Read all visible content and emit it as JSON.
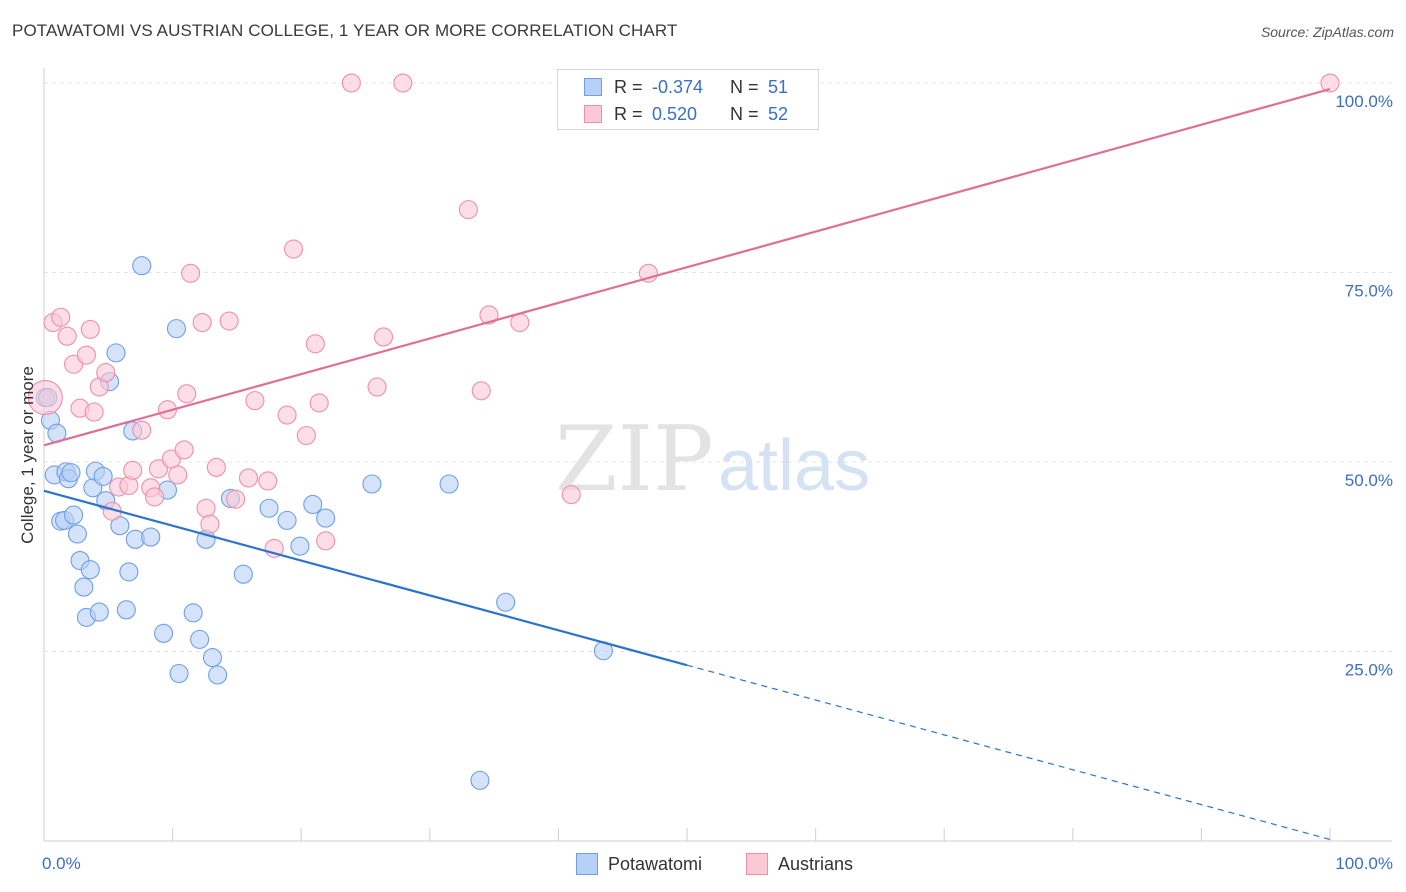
{
  "title": "POTAWATOMI VS AUSTRIAN COLLEGE, 1 YEAR OR MORE CORRELATION CHART",
  "source": "Source: ZipAtlas.com",
  "watermark": {
    "zip": "ZIP",
    "atlas": "atlas"
  },
  "legend": {
    "rows": [
      {
        "r_label": "R =",
        "r_value": "-0.374",
        "n_label": "N =",
        "n_value": "51",
        "fill": "#b7d0f5",
        "stroke": "#6f9fe6"
      },
      {
        "r_label": "R =",
        "r_value": "0.520",
        "n_label": "N =",
        "n_value": "52",
        "fill": "#fbc8d6",
        "stroke": "#ee8fab"
      }
    ]
  },
  "chart_data": {
    "type": "scatter",
    "xlabel": "",
    "ylabel": "College, 1 year or more",
    "xlim": [
      0,
      100
    ],
    "ylim": [
      0,
      100
    ],
    "x_tick_labels": [
      "0.0%",
      "100.0%"
    ],
    "y_tick_labels": [
      "25.0%",
      "50.0%",
      "75.0%",
      "100.0%"
    ],
    "y_ticks": [
      25,
      50,
      75,
      100
    ],
    "grid": true,
    "legend_position": "bottom",
    "series": [
      {
        "name": "Potawatomi",
        "color": "#6f9fe6",
        "fill": "#b7d0f5",
        "line_color": "#2b72d3",
        "trend": {
          "x0": 0,
          "y0": 46.2,
          "x1": 50,
          "y1": 23.2,
          "dashed_to_x": 100,
          "dashed_to_y": 0.2
        },
        "points": [
          [
            0.1,
            58.5
          ],
          [
            0.5,
            55.5
          ],
          [
            0.8,
            48.3
          ],
          [
            1.0,
            53.8
          ],
          [
            1.3,
            42.2
          ],
          [
            1.6,
            42.3
          ],
          [
            1.7,
            48.7
          ],
          [
            1.9,
            47.8
          ],
          [
            2.1,
            48.6
          ],
          [
            2.3,
            43.0
          ],
          [
            2.6,
            40.5
          ],
          [
            2.8,
            37.0
          ],
          [
            3.1,
            33.5
          ],
          [
            3.3,
            29.5
          ],
          [
            3.6,
            35.8
          ],
          [
            3.8,
            46.6
          ],
          [
            4.0,
            48.8
          ],
          [
            4.3,
            30.2
          ],
          [
            4.6,
            48.1
          ],
          [
            4.8,
            44.9
          ],
          [
            5.1,
            60.6
          ],
          [
            5.6,
            64.4
          ],
          [
            5.9,
            41.6
          ],
          [
            6.4,
            30.5
          ],
          [
            6.6,
            35.5
          ],
          [
            6.9,
            54.1
          ],
          [
            7.1,
            39.8
          ],
          [
            7.6,
            75.9
          ],
          [
            8.3,
            40.1
          ],
          [
            9.3,
            27.4
          ],
          [
            9.6,
            46.3
          ],
          [
            10.3,
            67.6
          ],
          [
            10.5,
            22.1
          ],
          [
            11.6,
            30.1
          ],
          [
            12.1,
            26.6
          ],
          [
            12.6,
            39.8
          ],
          [
            13.1,
            24.2
          ],
          [
            13.5,
            21.9
          ],
          [
            14.5,
            45.2
          ],
          [
            15.5,
            35.2
          ],
          [
            17.5,
            43.9
          ],
          [
            18.9,
            42.3
          ],
          [
            19.9,
            38.9
          ],
          [
            20.9,
            44.4
          ],
          [
            21.9,
            42.6
          ],
          [
            25.5,
            47.1
          ],
          [
            31.5,
            47.1
          ],
          [
            33.9,
            8.0
          ],
          [
            35.9,
            31.5
          ],
          [
            43.5,
            25.1
          ],
          [
            0.3,
            58.5
          ]
        ]
      },
      {
        "name": "Austrians",
        "color": "#ee8fab",
        "fill": "#fbc8d6",
        "line_color": "#e06f96",
        "trend": {
          "x0": 0,
          "y0": 52.2,
          "x1": 100,
          "y1": 99.2
        },
        "points": [
          [
            0.1,
            58.5
          ],
          [
            0.7,
            68.4
          ],
          [
            1.3,
            69.1
          ],
          [
            1.8,
            66.6
          ],
          [
            2.3,
            62.9
          ],
          [
            2.8,
            57.1
          ],
          [
            3.3,
            64.1
          ],
          [
            3.9,
            56.6
          ],
          [
            4.3,
            59.9
          ],
          [
            4.8,
            61.8
          ],
          [
            5.3,
            43.5
          ],
          [
            5.8,
            46.7
          ],
          [
            6.6,
            46.9
          ],
          [
            6.9,
            48.9
          ],
          [
            7.6,
            54.2
          ],
          [
            8.3,
            46.6
          ],
          [
            8.6,
            45.4
          ],
          [
            8.9,
            49.1
          ],
          [
            9.6,
            56.9
          ],
          [
            9.9,
            50.4
          ],
          [
            10.4,
            48.3
          ],
          [
            11.1,
            59.0
          ],
          [
            11.4,
            74.9
          ],
          [
            12.3,
            68.4
          ],
          [
            12.6,
            43.9
          ],
          [
            12.9,
            41.8
          ],
          [
            13.4,
            49.3
          ],
          [
            14.4,
            68.6
          ],
          [
            14.9,
            45.1
          ],
          [
            15.9,
            47.9
          ],
          [
            16.4,
            58.1
          ],
          [
            17.4,
            47.5
          ],
          [
            17.9,
            38.6
          ],
          [
            18.9,
            56.2
          ],
          [
            19.4,
            78.1
          ],
          [
            20.4,
            53.5
          ],
          [
            21.1,
            65.6
          ],
          [
            21.4,
            57.8
          ],
          [
            21.9,
            39.6
          ],
          [
            23.9,
            100.0
          ],
          [
            25.9,
            59.9
          ],
          [
            26.4,
            66.5
          ],
          [
            27.9,
            100.0
          ],
          [
            33.0,
            83.3
          ],
          [
            34.0,
            59.4
          ],
          [
            34.6,
            69.4
          ],
          [
            37.0,
            68.4
          ],
          [
            41.0,
            45.7
          ],
          [
            47.0,
            74.9
          ],
          [
            100.0,
            100.0
          ],
          [
            3.6,
            67.5
          ],
          [
            10.9,
            51.6
          ]
        ]
      }
    ]
  }
}
